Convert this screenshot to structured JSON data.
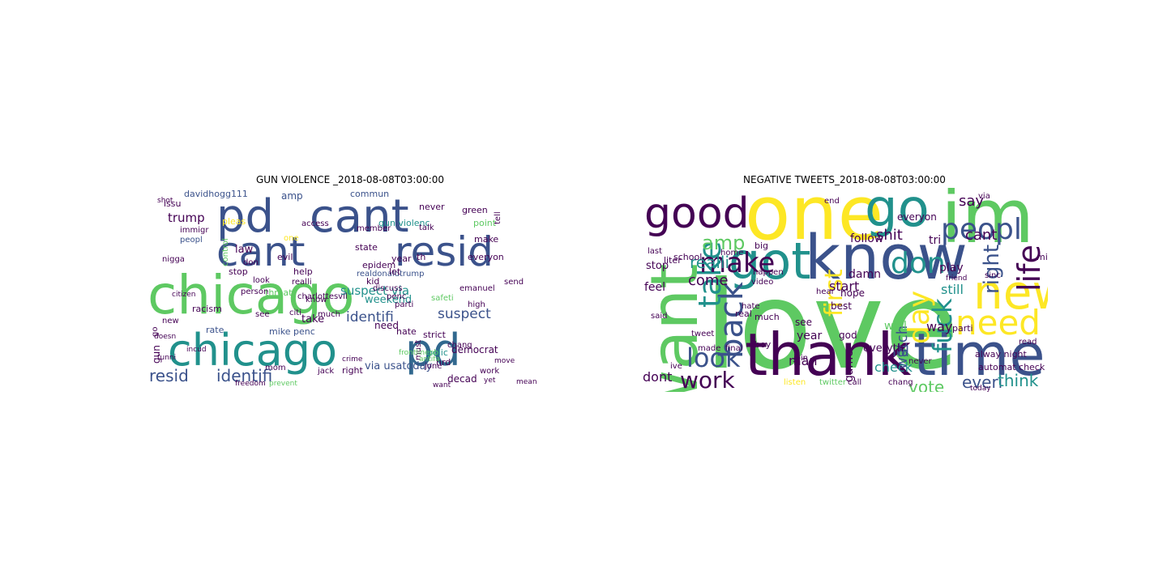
{
  "panels": [
    {
      "title": "GUN VIOLENCE _2018-08-08T03:00:00",
      "words": [
        {
          "t": "chicago",
          "c": "#5ec962"
        },
        {
          "t": "chicago",
          "c": "#21918c"
        },
        {
          "t": "pd",
          "c": "#3b528b"
        },
        {
          "t": "cant",
          "c": "#3b528b"
        },
        {
          "t": "cant",
          "c": "#3b528b"
        },
        {
          "t": "resid",
          "c": "#3b528b"
        },
        {
          "t": "pd",
          "c": "#31688e"
        },
        {
          "t": "resid",
          "c": "#3b528b"
        },
        {
          "t": "identifi",
          "c": "#3b528b"
        },
        {
          "t": "identifi",
          "c": "#3b528b"
        },
        {
          "t": "suspect",
          "c": "#3b528b"
        },
        {
          "t": "suspect via",
          "c": "#21918c"
        },
        {
          "t": "trump",
          "c": "#440154"
        },
        {
          "t": "davidhogg111",
          "c": "#3b528b"
        },
        {
          "t": "issu",
          "c": "#440154"
        },
        {
          "t": "gun violenc",
          "c": "#21918c"
        },
        {
          "t": "amp",
          "c": "#3b528b"
        },
        {
          "t": "realdonaldtrump",
          "c": "#3b528b"
        },
        {
          "t": "weekend",
          "c": "#21918c"
        },
        {
          "t": "via usatoday",
          "c": "#3b528b"
        },
        {
          "t": "epidem",
          "c": "#440154"
        },
        {
          "t": "democrat",
          "c": "#440154"
        },
        {
          "t": "law",
          "c": "#440154"
        },
        {
          "t": "take",
          "c": "#440154"
        },
        {
          "t": "right",
          "c": "#440154"
        },
        {
          "t": "need",
          "c": "#440154"
        },
        {
          "t": "kid",
          "c": "#440154"
        },
        {
          "t": "let",
          "c": "#440154"
        },
        {
          "t": "gun",
          "c": "#440154"
        },
        {
          "t": "racism",
          "c": "#440154"
        },
        {
          "t": "rate",
          "c": "#3b528b"
        },
        {
          "t": "mike penc",
          "c": "#3b528b"
        },
        {
          "t": "polic",
          "c": "#21918c"
        },
        {
          "t": "nrd",
          "c": "#440154"
        },
        {
          "t": "decad",
          "c": "#440154"
        },
        {
          "t": "strict",
          "c": "#440154"
        },
        {
          "t": "commun",
          "c": "#3b528b"
        },
        {
          "t": "never",
          "c": "#440154"
        },
        {
          "t": "green",
          "c": "#440154"
        },
        {
          "t": "point",
          "c": "#5ec962"
        },
        {
          "t": "make",
          "c": "#440154"
        },
        {
          "t": "everyon",
          "c": "#440154"
        },
        {
          "t": "state",
          "c": "#440154"
        },
        {
          "t": "evil",
          "c": "#440154"
        },
        {
          "t": "help",
          "c": "#440154"
        },
        {
          "t": "stop",
          "c": "#440154"
        },
        {
          "t": "year",
          "c": "#440154"
        },
        {
          "t": "th",
          "c": "#440154"
        },
        {
          "t": "talk",
          "c": "#440154"
        },
        {
          "t": "one",
          "c": "#fde725"
        },
        {
          "t": "peopl",
          "c": "#3b528b"
        },
        {
          "t": "nigga",
          "c": "#440154"
        },
        {
          "t": "threat",
          "c": "#5ec962"
        },
        {
          "t": "know",
          "c": "#440154"
        },
        {
          "t": "see",
          "c": "#440154"
        },
        {
          "t": "citi",
          "c": "#440154"
        },
        {
          "t": "much",
          "c": "#440154"
        },
        {
          "t": "hate",
          "c": "#440154"
        },
        {
          "t": "mom",
          "c": "#440154"
        },
        {
          "t": "jack",
          "c": "#440154"
        },
        {
          "t": "must",
          "c": "#440154"
        },
        {
          "t": "chang",
          "c": "#440154"
        },
        {
          "t": "discuss",
          "c": "#440154"
        },
        {
          "t": "jone",
          "c": "#440154"
        },
        {
          "t": "don",
          "c": "#440154"
        },
        {
          "t": "new",
          "c": "#440154"
        },
        {
          "t": "go",
          "c": "#440154"
        },
        {
          "t": "penc",
          "c": "#440154"
        },
        {
          "t": "person",
          "c": "#440154"
        },
        {
          "t": "emanuel",
          "c": "#440154"
        },
        {
          "t": "high",
          "c": "#440154"
        },
        {
          "t": "send",
          "c": "#440154"
        },
        {
          "t": "realli",
          "c": "#440154"
        },
        {
          "t": "access",
          "c": "#440154"
        },
        {
          "t": "member",
          "c": "#440154"
        },
        {
          "t": "safeti",
          "c": "#5ec962"
        },
        {
          "t": "parti",
          "c": "#440154"
        },
        {
          "t": "tell",
          "c": "#440154"
        },
        {
          "t": "pleas",
          "c": "#fde725"
        },
        {
          "t": "immigr",
          "c": "#440154"
        },
        {
          "t": "control",
          "c": "#5ec962"
        },
        {
          "t": "charlottesvil",
          "c": "#440154"
        },
        {
          "t": "look",
          "c": "#440154"
        },
        {
          "t": "work",
          "c": "#440154"
        },
        {
          "t": "want",
          "c": "#440154"
        },
        {
          "t": "mean",
          "c": "#440154"
        },
        {
          "t": "yet",
          "c": "#440154"
        },
        {
          "t": "freedom",
          "c": "#440154"
        },
        {
          "t": "prevent",
          "c": "#5ec962"
        },
        {
          "t": "frontlinepb",
          "c": "#5ec962"
        },
        {
          "t": "crime",
          "c": "#440154"
        },
        {
          "t": "citizen",
          "c": "#440154"
        },
        {
          "t": "doesn",
          "c": "#440154"
        },
        {
          "t": "tunni",
          "c": "#440154"
        },
        {
          "t": "shot",
          "c": "#440154"
        },
        {
          "t": "incud",
          "c": "#440154"
        },
        {
          "t": "antifa",
          "c": "#5ec962"
        },
        {
          "t": "move",
          "c": "#440154"
        },
        {
          "t": "focu",
          "c": "#440154"
        }
      ]
    },
    {
      "title": "NEGATIVE TWEETS_2018-08-08T03:00:00",
      "words": [
        {
          "t": "love",
          "c": "#5ec962"
        },
        {
          "t": "one",
          "c": "#fde725"
        },
        {
          "t": "im",
          "c": "#5ec962"
        },
        {
          "t": "go",
          "c": "#21918c"
        },
        {
          "t": "know",
          "c": "#3b528b"
        },
        {
          "t": "time",
          "c": "#3b528b"
        },
        {
          "t": "thank",
          "c": "#440154"
        },
        {
          "t": "want",
          "c": "#5ec962"
        },
        {
          "t": "good",
          "c": "#440154"
        },
        {
          "t": "got",
          "c": "#21918c"
        },
        {
          "t": "new",
          "c": "#fde725"
        },
        {
          "t": "peopl",
          "c": "#3b528b"
        },
        {
          "t": "need",
          "c": "#fde725"
        },
        {
          "t": "back",
          "c": "#3b528b"
        },
        {
          "t": "take",
          "c": "#21918c"
        },
        {
          "t": "make",
          "c": "#440154"
        },
        {
          "t": "look",
          "c": "#3b528b"
        },
        {
          "t": "work",
          "c": "#440154"
        },
        {
          "t": "day",
          "c": "#fde725"
        },
        {
          "t": "life",
          "c": "#440154"
        },
        {
          "t": "don",
          "c": "#21918c"
        },
        {
          "t": "fuck",
          "c": "#21918c"
        },
        {
          "t": "amp",
          "c": "#5ec962"
        },
        {
          "t": "realli",
          "c": "#21918c"
        },
        {
          "t": "come",
          "c": "#440154"
        },
        {
          "t": "first",
          "c": "#fde725"
        },
        {
          "t": "right",
          "c": "#3b528b"
        },
        {
          "t": "say",
          "c": "#440154"
        },
        {
          "t": "shit",
          "c": "#440154"
        },
        {
          "t": "tri",
          "c": "#440154"
        },
        {
          "t": "cant",
          "c": "#440154"
        },
        {
          "t": "play",
          "c": "#440154"
        },
        {
          "t": "still",
          "c": "#21918c"
        },
        {
          "t": "way",
          "c": "#440154"
        },
        {
          "t": "lol",
          "c": "#3b528b"
        },
        {
          "t": "watch",
          "c": "#3b528b"
        },
        {
          "t": "vote",
          "c": "#5ec962"
        },
        {
          "t": "everi",
          "c": "#3b528b"
        },
        {
          "t": "think",
          "c": "#21918c"
        },
        {
          "t": "dont",
          "c": "#440154"
        },
        {
          "t": "check",
          "c": "#21918c"
        },
        {
          "t": "man",
          "c": "#440154"
        },
        {
          "t": "game",
          "c": "#440154"
        },
        {
          "t": "start",
          "c": "#440154"
        },
        {
          "t": "see",
          "c": "#440154"
        },
        {
          "t": "year",
          "c": "#440154"
        },
        {
          "t": "follow",
          "c": "#440154"
        },
        {
          "t": "well",
          "c": "#5ec962"
        },
        {
          "t": "feel",
          "c": "#440154"
        },
        {
          "t": "stop",
          "c": "#440154"
        },
        {
          "t": "best",
          "c": "#440154"
        },
        {
          "t": "hope",
          "c": "#440154"
        },
        {
          "t": "video",
          "c": "#440154"
        },
        {
          "t": "friend",
          "c": "#440154"
        },
        {
          "t": "automat check",
          "c": "#440154"
        },
        {
          "t": "alway night",
          "c": "#440154"
        },
        {
          "t": "read",
          "c": "#440154"
        },
        {
          "t": "today",
          "c": "#440154"
        },
        {
          "t": "listen",
          "c": "#fde725"
        },
        {
          "t": "call",
          "c": "#440154"
        },
        {
          "t": "chang",
          "c": "#440154"
        },
        {
          "t": "twitter",
          "c": "#5ec962"
        },
        {
          "t": "everyon",
          "c": "#440154"
        },
        {
          "t": "join",
          "c": "#440154"
        },
        {
          "t": "god",
          "c": "#440154"
        },
        {
          "t": "damn",
          "c": "#440154"
        },
        {
          "t": "hear",
          "c": "#440154"
        },
        {
          "t": "end",
          "c": "#440154"
        },
        {
          "t": "last",
          "c": "#440154"
        },
        {
          "t": "liter",
          "c": "#440154"
        },
        {
          "t": "school",
          "c": "#440154"
        },
        {
          "t": "home",
          "c": "#440154"
        },
        {
          "t": "big",
          "c": "#440154"
        },
        {
          "t": "said",
          "c": "#440154"
        },
        {
          "t": "tweet",
          "c": "#440154"
        },
        {
          "t": "made",
          "c": "#440154"
        },
        {
          "t": "final",
          "c": "#440154"
        },
        {
          "t": "boy",
          "c": "#440154"
        },
        {
          "t": "real",
          "c": "#440154"
        },
        {
          "t": "much",
          "c": "#440154"
        },
        {
          "t": "ive",
          "c": "#440154"
        },
        {
          "t": "parti",
          "c": "#440154"
        },
        {
          "t": "via",
          "c": "#440154"
        },
        {
          "t": "everyth",
          "c": "#440154"
        },
        {
          "t": "never",
          "c": "#440154"
        },
        {
          "t": "hate",
          "c": "#440154"
        },
        {
          "t": "sinc",
          "c": "#440154"
        },
        {
          "t": "mid",
          "c": "#440154"
        },
        {
          "t": "happen",
          "c": "#440154"
        }
      ]
    }
  ]
}
